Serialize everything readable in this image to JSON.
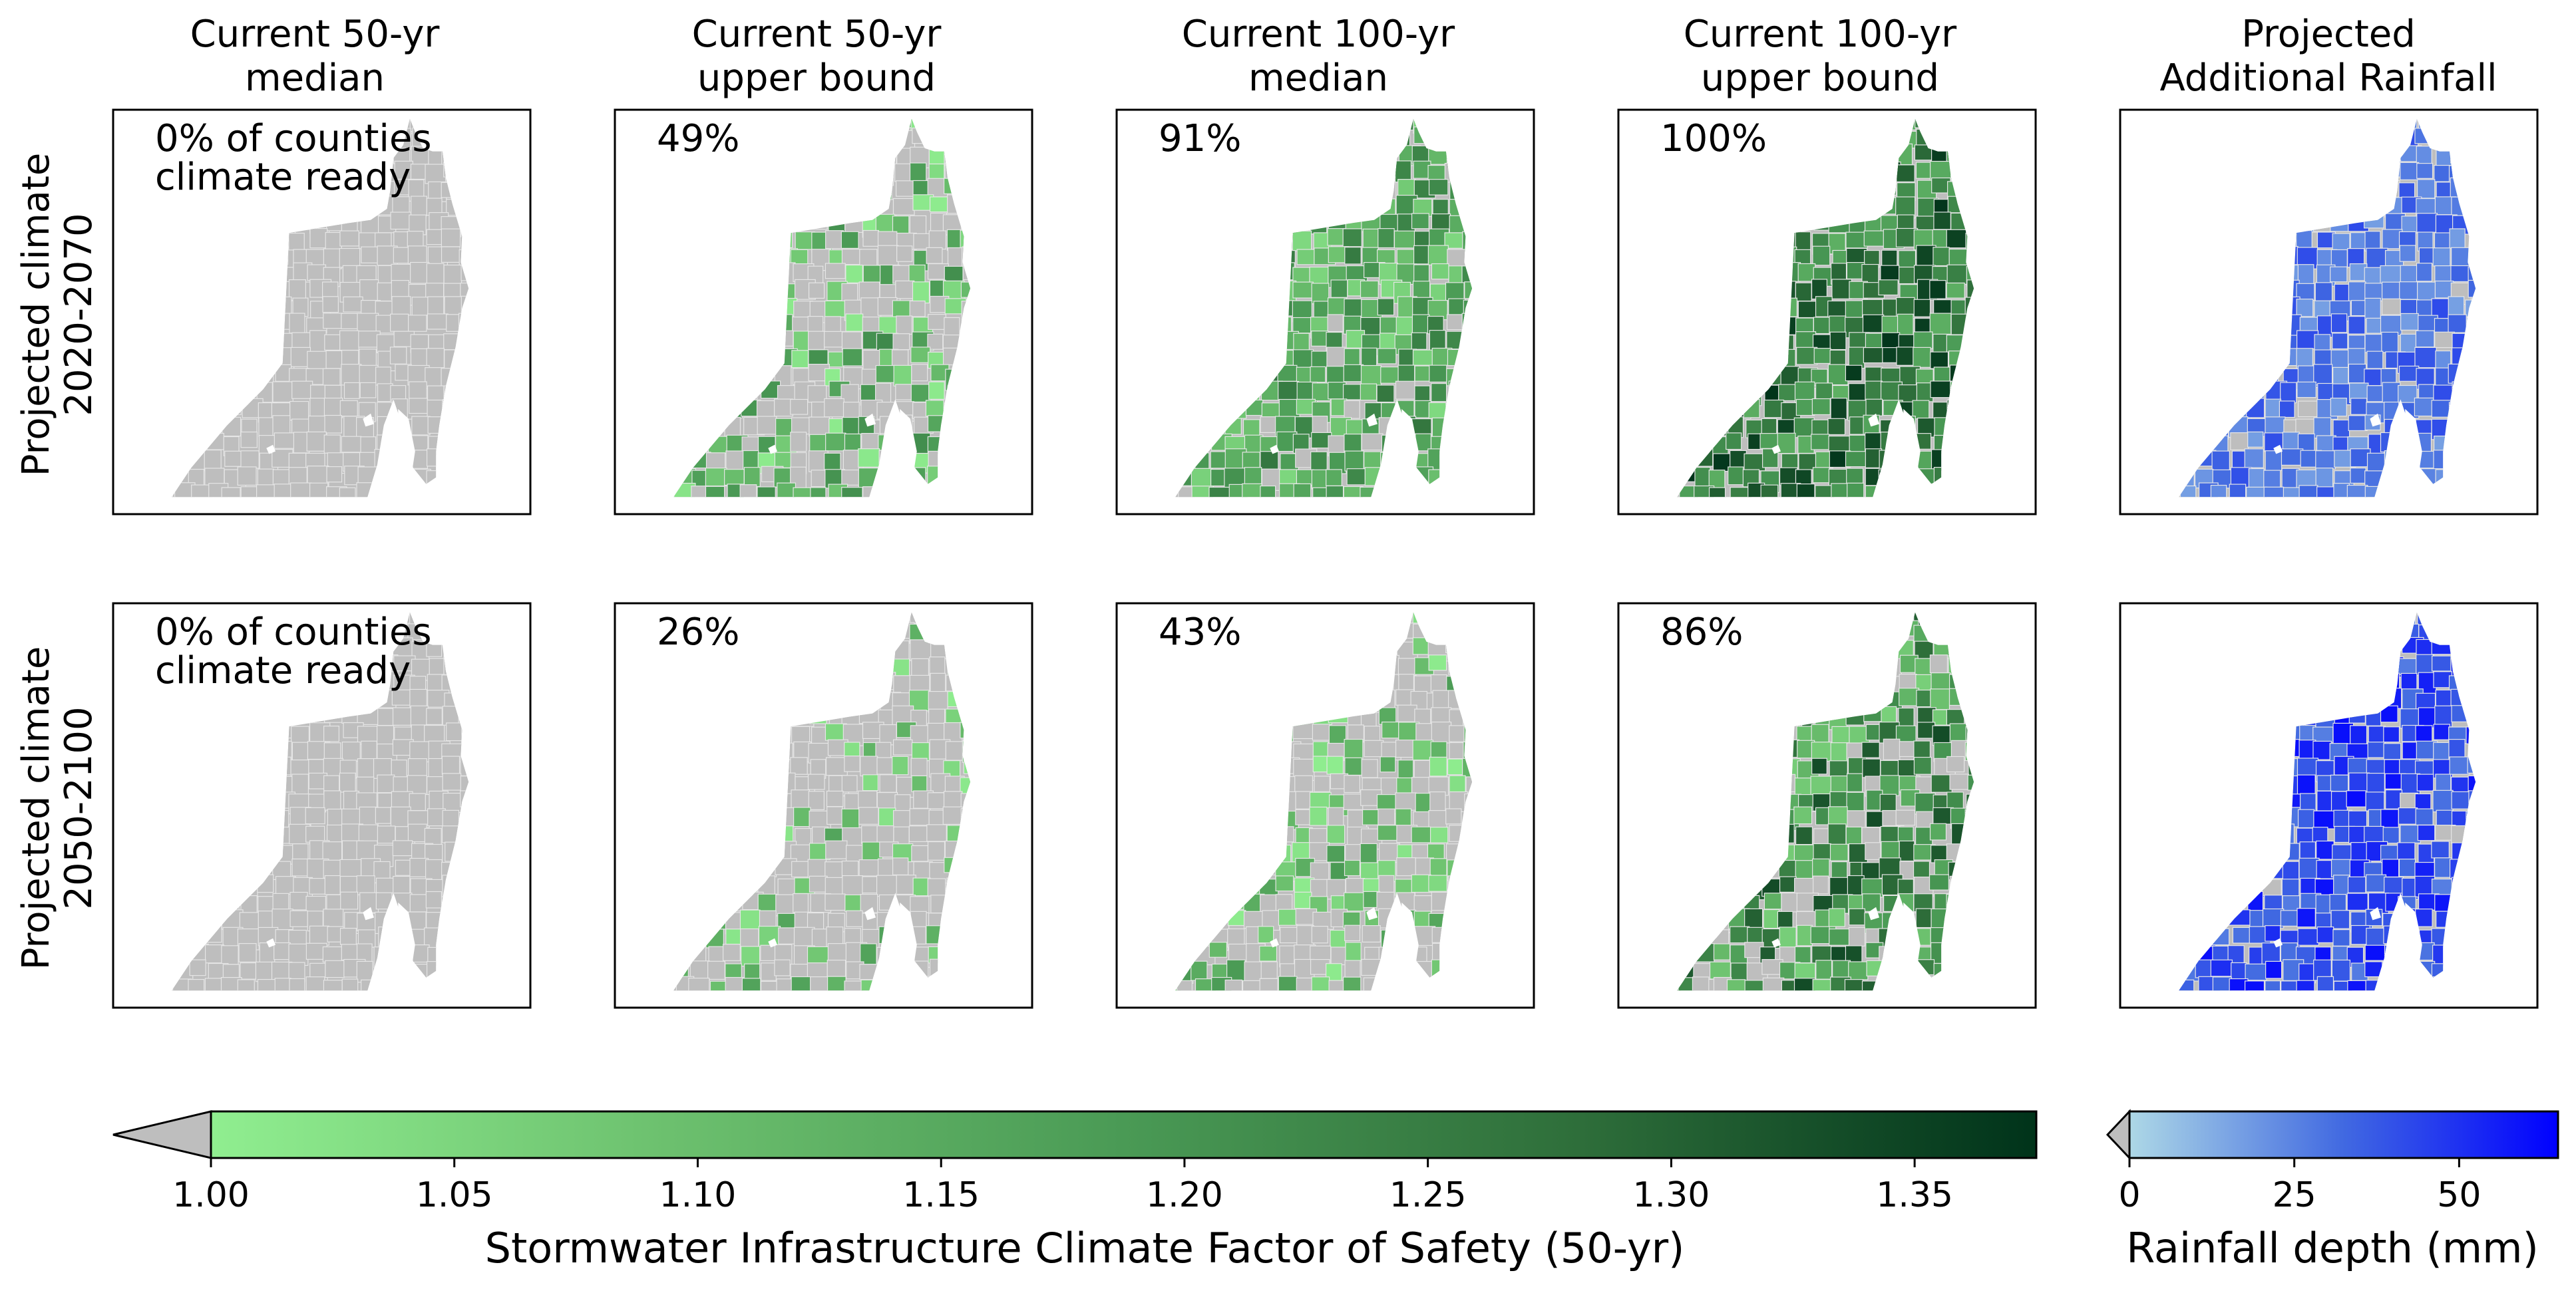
{
  "chart_data": {
    "type": "choropleth-map-grid",
    "column_titles": [
      [
        "Current 50-yr",
        "median"
      ],
      [
        "Current 50-yr",
        "upper bound"
      ],
      [
        "Current 100-yr",
        "median"
      ],
      [
        "Current 100-yr",
        "upper bound"
      ],
      [
        "Projected",
        "Additional Rainfall"
      ]
    ],
    "row_titles": [
      [
        "Projected climate",
        "2020-2070"
      ],
      [
        "Projected climate",
        "2050-2100"
      ]
    ],
    "panel_annotations": [
      [
        [
          "0% of counties",
          "climate ready"
        ],
        [
          "49%"
        ],
        [
          "91%"
        ],
        [
          "100%"
        ],
        []
      ],
      [
        [
          "0% of counties",
          "climate ready"
        ],
        [
          "26%"
        ],
        [
          "43%"
        ],
        [
          "86%"
        ],
        []
      ]
    ],
    "percent_counties_climate_ready": {
      "2020-2070": {
        "current_50yr_median": 0,
        "current_50yr_upper_bound": 49,
        "current_100yr_median": 91,
        "current_100yr_upper_bound": 100
      },
      "2050-2100": {
        "current_50yr_median": 0,
        "current_50yr_upper_bound": 26,
        "current_100yr_median": 43,
        "current_100yr_upper_bound": 86
      }
    },
    "colorbars": [
      {
        "label": "Stormwater Infrastructure Climate Factor of Safety (50-yr)",
        "range": [
          1.0,
          1.375
        ],
        "ticks": [
          "1.00",
          "1.05",
          "1.10",
          "1.15",
          "1.20",
          "1.25",
          "1.30",
          "1.35"
        ],
        "tick_values": [
          1.0,
          1.05,
          1.1,
          1.15,
          1.2,
          1.25,
          1.3,
          1.35
        ],
        "extend": "min",
        "under_color": "#bebebe",
        "colors": [
          "#90ee90",
          "#6cc06e",
          "#4a9a55",
          "#2e6e3a",
          "#00331a"
        ]
      },
      {
        "label": "Rainfall depth (mm)",
        "range": [
          0,
          65
        ],
        "ticks": [
          "0",
          "25",
          "50"
        ],
        "tick_values": [
          0,
          25,
          50
        ],
        "extend": "min",
        "under_color": "#bebebe",
        "colors": [
          "#add8e6",
          "#4169e1",
          "#0000ff"
        ]
      }
    ],
    "panel_level_ranges": [
      [
        [
          0.0,
          0.0
        ],
        [
          0.0,
          0.6
        ],
        [
          0.1,
          0.7
        ],
        [
          0.35,
          1.0
        ],
        [
          0.25,
          0.65
        ]
      ],
      [
        [
          0.0,
          0.0
        ],
        [
          0.0,
          0.45
        ],
        [
          0.0,
          0.5
        ],
        [
          0.15,
          0.9
        ],
        [
          0.4,
          0.95
        ]
      ]
    ],
    "grey_fraction": [
      [
        1.0,
        0.51,
        0.09,
        0.0,
        0.02
      ],
      [
        1.0,
        0.74,
        0.57,
        0.14,
        0.02
      ]
    ]
  }
}
